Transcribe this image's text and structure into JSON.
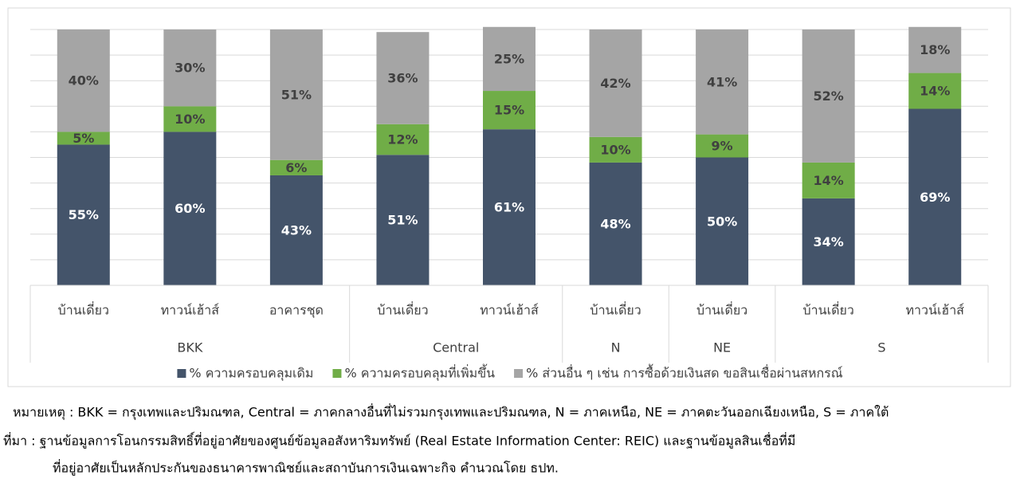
{
  "chart_data": {
    "type": "stacked-bar",
    "categories": [
      "บ้านเดี่ยว",
      "ทาวน์เฮ้าส์",
      "อาคารชุด",
      "บ้านเดี่ยว",
      "ทาวน์เฮ้าส์",
      "บ้านเดี่ยว",
      "บ้านเดี่ยว",
      "บ้านเดี่ยว",
      "ทาวน์เฮ้าส์"
    ],
    "groups": [
      "BKK",
      "BKK",
      "BKK",
      "Central",
      "Central",
      "N",
      "NE",
      "S",
      "S"
    ],
    "series": [
      {
        "name": "% ความครอบคลุมเดิม",
        "color": "#44546a",
        "label_color": "#ffffff",
        "values": [
          55,
          60,
          43,
          51,
          61,
          48,
          50,
          34,
          69
        ],
        "value_labels": [
          "55%",
          "60%",
          "43%",
          "51%",
          "61%",
          "48%",
          "50%",
          "34%",
          "69%"
        ]
      },
      {
        "name": "% ความครอบคลุมที่เพิ่มขึ้น",
        "color": "#70ad47",
        "label_color": "#404040",
        "values": [
          5,
          10,
          6,
          12,
          15,
          10,
          9,
          14,
          14
        ],
        "value_labels": [
          "5%",
          "10%",
          "6%",
          "12%",
          "15%",
          "10%",
          "9%",
          "14%",
          "14%"
        ]
      },
      {
        "name": "% ส่วนอื่น ๆ เช่น การซื้อด้วยเงินสด ขอสินเชื่อผ่านสหกรณ์",
        "color": "#a5a5a5",
        "label_color": "#404040",
        "values": [
          40,
          30,
          51,
          36,
          25,
          42,
          41,
          52,
          18
        ],
        "value_labels": [
          "40%",
          "30%",
          "51%",
          "36%",
          "25%",
          "42%",
          "41%",
          "52%",
          "18%"
        ]
      }
    ],
    "ylim": [
      0,
      100
    ],
    "yticks": [
      0,
      10,
      20,
      30,
      40,
      50,
      60,
      70,
      80,
      90,
      100
    ],
    "grid": true,
    "legend": "bottom"
  },
  "notes": [
    "หมายเหตุ : BKK = กรุงเทพและปริมณฑล, Central = ภาคกลางอื่นที่ไม่รวมกรุงเทพและปริมณฑล, N = ภาคเหนือ, NE = ภาคตะวันออกเฉียงเหนือ, S = ภาคใต้",
    "ที่มา : ฐานข้อมูลการโอนกรรมสิทธิ์ที่อยู่อาศัยของศูนย์ข้อมูลอสังหาริมทรัพย์ (Real Estate Information Center: REIC) และฐานข้อมูลสินเชื่อที่มี",
    "ที่อยู่อาศัยเป็นหลักประกันของธนาคารพาณิชย์และสถาบันการเงินเฉพาะกิจ คำนวณโดย ธปท."
  ]
}
